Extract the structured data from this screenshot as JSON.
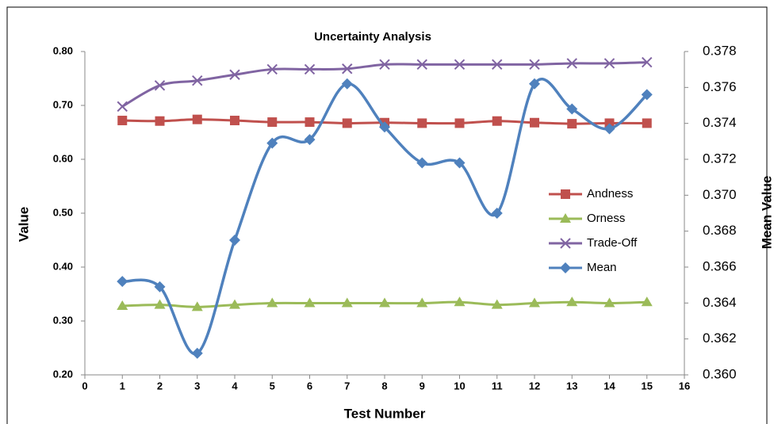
{
  "chart_data": {
    "type": "line",
    "title": "Uncertainty Analysis",
    "x_label": "Test Number",
    "y_label": "Value",
    "y2_label": "Mean Value",
    "x": [
      1,
      2,
      3,
      4,
      5,
      6,
      7,
      8,
      9,
      10,
      11,
      12,
      13,
      14,
      15
    ],
    "xlim": [
      0,
      16
    ],
    "xticks": [
      0,
      1,
      2,
      3,
      4,
      5,
      6,
      7,
      8,
      9,
      10,
      11,
      12,
      13,
      14,
      15,
      16
    ],
    "ylim": [
      0.2,
      0.8
    ],
    "yticks": [
      {
        "value": 0.2,
        "label": "0.20"
      },
      {
        "value": 0.3,
        "label": "0.30"
      },
      {
        "value": 0.4,
        "label": "0.40"
      },
      {
        "value": 0.5,
        "label": "0.50"
      },
      {
        "value": 0.6,
        "label": "0.60"
      },
      {
        "value": 0.7,
        "label": "0.70"
      },
      {
        "value": 0.8,
        "label": "0.80"
      }
    ],
    "y2lim": [
      0.36,
      0.378
    ],
    "y2ticks": [
      {
        "value": 0.36,
        "label": "0.360"
      },
      0.362,
      0.364,
      0.366,
      0.368,
      {
        "value": 0.37,
        "label": "0.370"
      },
      0.372,
      0.374,
      0.376,
      0.378
    ],
    "smooth": true,
    "series": [
      {
        "name": "Andness",
        "color": "#c0504d",
        "marker": "square",
        "values": [
          0.672,
          0.671,
          0.674,
          0.672,
          0.669,
          0.669,
          0.667,
          0.668,
          0.667,
          0.667,
          0.671,
          0.668,
          0.666,
          0.667,
          0.667
        ]
      },
      {
        "name": "Orness",
        "color": "#9bbb59",
        "marker": "triangle",
        "values": [
          0.328,
          0.33,
          0.326,
          0.33,
          0.333,
          0.333,
          0.333,
          0.333,
          0.333,
          0.335,
          0.33,
          0.333,
          0.335,
          0.333,
          0.335
        ]
      },
      {
        "name": "Trade-Off",
        "color": "#8064a2",
        "marker": "x",
        "values": [
          0.698,
          0.737,
          0.746,
          0.757,
          0.767,
          0.767,
          0.768,
          0.776,
          0.776,
          0.776,
          0.776,
          0.776,
          0.778,
          0.778,
          0.78
        ]
      },
      {
        "name": "Mean",
        "color": "#4f81bd",
        "marker": "diamond",
        "axis": "y2",
        "values": [
          0.3652,
          0.3649,
          0.3612,
          0.3675,
          0.3729,
          0.3731,
          0.3762,
          0.3738,
          0.3718,
          0.3718,
          0.369,
          0.3762,
          0.3748,
          0.3737,
          0.3756
        ]
      }
    ]
  }
}
